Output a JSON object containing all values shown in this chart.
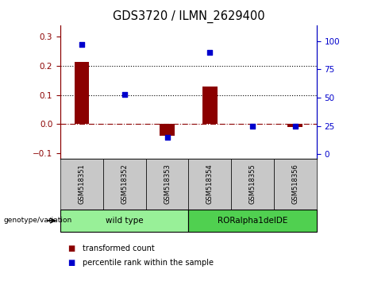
{
  "title": "GDS3720 / ILMN_2629400",
  "samples": [
    "GSM518351",
    "GSM518352",
    "GSM518353",
    "GSM518354",
    "GSM518355",
    "GSM518356"
  ],
  "transformed_count": [
    0.215,
    0.0,
    -0.04,
    0.13,
    0.0,
    -0.01
  ],
  "percentile_rank": [
    97,
    53,
    15,
    90,
    25,
    25
  ],
  "groups": [
    {
      "label": "wild type",
      "indices": [
        0,
        1,
        2
      ],
      "color": "#98F098"
    },
    {
      "label": "RORalpha1delDE",
      "indices": [
        3,
        4,
        5
      ],
      "color": "#50D050"
    }
  ],
  "bar_color": "#8B0000",
  "scatter_color": "#0000CC",
  "ylim_left": [
    -0.12,
    0.34
  ],
  "ylim_right": [
    -4,
    114
  ],
  "yticks_left": [
    -0.1,
    0.0,
    0.1,
    0.2,
    0.3
  ],
  "yticks_right": [
    0,
    25,
    50,
    75,
    100
  ],
  "hlines": [
    0.1,
    0.2
  ],
  "background_color": "#ffffff",
  "tick_label_fontsize": 7.5,
  "title_fontsize": 10.5,
  "sample_box_color": "#C8C8C8",
  "legend_labels": [
    "transformed count",
    "percentile rank within the sample"
  ]
}
